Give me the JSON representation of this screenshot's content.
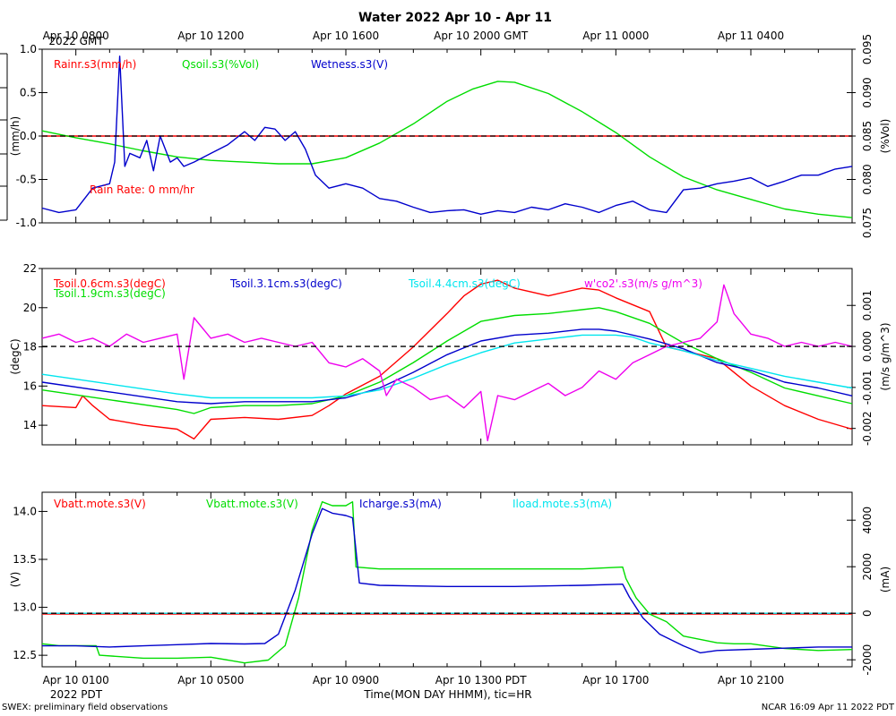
{
  "title": "Water 2022 Apr 10 - Apr 11",
  "top_axis": {
    "labels": [
      "Apr 10 0800",
      "Apr 10 1200",
      "Apr 10 1600",
      "Apr 10 2000 GMT",
      "Apr 11 0000",
      "Apr 11 0400"
    ],
    "sublabel": "2022 GMT"
  },
  "bottom_axis": {
    "labels": [
      "Apr 10 0100",
      "Apr 10 0500",
      "Apr 10 0900",
      "Apr 10 1300 PDT",
      "Apr 10 1700",
      "Apr 10 2100"
    ],
    "sublabel": "2022 PDT",
    "title": "Time(MON DAY HHMM), tic=HR"
  },
  "footer_left": "SWEX: preliminary field observations",
  "footer_right": "NCAR 16:09 Apr 11 2022 PDT",
  "chart_data": [
    {
      "type": "line",
      "panel": "water",
      "x_unit": "hours since Apr 10 0000 PDT",
      "xlim": [
        0,
        24
      ],
      "left_axis": {
        "label": "(mm/h)",
        "lim": [
          -1.0,
          1.0
        ],
        "ticks": [
          -1.0,
          -0.5,
          0.0,
          0.5,
          1.0
        ],
        "tick_labels": [
          "-1.0",
          "-0.5",
          "0.0",
          "0.5",
          "1.0"
        ]
      },
      "right_axis": {
        "label": "(%Vol)",
        "lim": [
          0.075,
          0.095
        ],
        "ticks": [
          0.075,
          0.08,
          0.085,
          0.09,
          0.095
        ],
        "tick_labels": [
          "0.075",
          "0.080",
          "0.085",
          "0.090",
          "0.095"
        ]
      },
      "reference_line": {
        "axis": "left",
        "value": 0.0,
        "style": "dashed"
      },
      "annotation": "Rain Rate: 0 mm/hr",
      "series": [
        {
          "name": "Rainr.s3(mm/h)",
          "axis": "left",
          "color": "#ff0000",
          "x": [
            0,
            24
          ],
          "y": [
            0.0,
            0.0
          ]
        },
        {
          "name": "Qsoil.s3(%Vol)",
          "axis": "right",
          "color": "#00dd00",
          "x": [
            0,
            1,
            2,
            3,
            4,
            5,
            6,
            7,
            8,
            9,
            10,
            11,
            12,
            12.75,
            13.5,
            14,
            15,
            16,
            17,
            18,
            19,
            20,
            21,
            22,
            23,
            24
          ],
          "y": [
            0.0856,
            0.0848,
            0.0841,
            0.0833,
            0.0826,
            0.0822,
            0.082,
            0.0818,
            0.0818,
            0.0825,
            0.0842,
            0.0864,
            0.089,
            0.0904,
            0.0913,
            0.0912,
            0.0899,
            0.0878,
            0.0854,
            0.0826,
            0.0803,
            0.0788,
            0.0777,
            0.0766,
            0.076,
            0.0756
          ]
        },
        {
          "name": "Wetness.s3(V)",
          "axis": "left",
          "color": "#0000cc",
          "x": [
            0,
            0.5,
            1,
            1.5,
            2,
            2.15,
            2.3,
            2.45,
            2.6,
            2.9,
            3.1,
            3.3,
            3.5,
            3.8,
            4,
            4.2,
            4.5,
            5,
            5.5,
            6,
            6.3,
            6.6,
            6.9,
            7.2,
            7.5,
            7.8,
            8.1,
            8.5,
            9,
            9.5,
            10,
            10.5,
            11,
            11.5,
            12,
            12.5,
            13,
            13.5,
            14,
            14.5,
            15,
            15.5,
            16,
            16.5,
            17,
            17.5,
            18,
            18.5,
            19,
            19.5,
            20,
            20.5,
            21,
            21.5,
            22,
            22.5,
            23,
            23.5,
            24
          ],
          "y": [
            -0.83,
            -0.88,
            -0.85,
            -0.6,
            -0.55,
            -0.3,
            0.92,
            -0.35,
            -0.2,
            -0.25,
            -0.05,
            -0.4,
            0.0,
            -0.3,
            -0.25,
            -0.35,
            -0.3,
            -0.2,
            -0.1,
            0.05,
            -0.05,
            0.1,
            0.08,
            -0.05,
            0.05,
            -0.15,
            -0.45,
            -0.6,
            -0.55,
            -0.6,
            -0.72,
            -0.75,
            -0.82,
            -0.88,
            -0.86,
            -0.85,
            -0.9,
            -0.86,
            -0.88,
            -0.82,
            -0.85,
            -0.78,
            -0.82,
            -0.88,
            -0.8,
            -0.75,
            -0.85,
            -0.88,
            -0.62,
            -0.6,
            -0.55,
            -0.52,
            -0.48,
            -0.58,
            -0.52,
            -0.45,
            -0.45,
            -0.38,
            -0.35
          ]
        }
      ]
    },
    {
      "type": "line",
      "panel": "soil temperature",
      "x_unit": "hours since Apr 10 0000 PDT",
      "xlim": [
        0,
        24
      ],
      "left_axis": {
        "label": "(degC)",
        "lim": [
          13,
          22
        ],
        "ticks": [
          14,
          16,
          18,
          20,
          22
        ],
        "tick_labels": [
          "14",
          "16",
          "18",
          "20",
          "22"
        ]
      },
      "right_axis": {
        "label": "(m/s g/m^3)",
        "lim": [
          -0.0024,
          0.0019
        ],
        "ticks": [
          -0.002,
          -0.001,
          0.0,
          0.001
        ],
        "tick_labels": [
          "-0.002",
          "-0.001",
          "0.000",
          "0.001"
        ]
      },
      "reference_line": {
        "axis": "right",
        "value": 0.0,
        "style": "dashed"
      },
      "series": [
        {
          "name": "Tsoil.0.6cm.s3(degC)",
          "axis": "left",
          "color": "#ff0000",
          "x": [
            0,
            1,
            1.2,
            1.5,
            2,
            3,
            4,
            4.5,
            5,
            6,
            7,
            8,
            8.5,
            9,
            10,
            11,
            12,
            12.5,
            13,
            13.5,
            14,
            15,
            16,
            16.5,
            17,
            18,
            18.5,
            19,
            20,
            21,
            22,
            23,
            24
          ],
          "y": [
            15.0,
            14.9,
            15.5,
            15.0,
            14.3,
            14.0,
            13.8,
            13.3,
            14.3,
            14.4,
            14.3,
            14.5,
            15.0,
            15.6,
            16.5,
            18.0,
            19.7,
            20.6,
            21.2,
            21.4,
            21.0,
            20.6,
            21.0,
            20.9,
            20.5,
            19.8,
            18.0,
            17.8,
            17.4,
            16.0,
            15.0,
            14.3,
            13.8
          ]
        },
        {
          "name": "Tsoil.1.9cm.s3(degC)",
          "axis": "left",
          "color": "#00dd00",
          "x": [
            0,
            2,
            4,
            4.5,
            5,
            6,
            7,
            8,
            9,
            10,
            11,
            12,
            13,
            14,
            15,
            16,
            16.5,
            17,
            18,
            19,
            20,
            21,
            22,
            23,
            24
          ],
          "y": [
            15.8,
            15.3,
            14.8,
            14.6,
            14.9,
            15.0,
            15.0,
            15.1,
            15.5,
            16.2,
            17.2,
            18.3,
            19.3,
            19.6,
            19.7,
            19.9,
            20.0,
            19.8,
            19.2,
            18.2,
            17.4,
            16.7,
            15.9,
            15.5,
            15.1
          ]
        },
        {
          "name": "Tsoil.3.1cm.s3(degC)",
          "axis": "left",
          "color": "#0000cc",
          "x": [
            0,
            2,
            4,
            5,
            6,
            7,
            8,
            9,
            10,
            11,
            12,
            13,
            14,
            15,
            16,
            16.5,
            17,
            18,
            19,
            20,
            21,
            22,
            23,
            24
          ],
          "y": [
            16.2,
            15.7,
            15.2,
            15.1,
            15.2,
            15.2,
            15.2,
            15.4,
            15.9,
            16.7,
            17.6,
            18.3,
            18.6,
            18.7,
            18.9,
            18.9,
            18.8,
            18.4,
            17.9,
            17.2,
            16.8,
            16.2,
            15.9,
            15.5
          ]
        },
        {
          "name": "Tsoil.4.4cm.s3(degC)",
          "axis": "left",
          "color": "#00e5ee",
          "x": [
            0,
            2,
            4,
            5,
            6,
            7,
            8,
            9,
            10,
            11,
            12,
            13,
            14,
            15,
            16,
            17,
            17.5,
            18,
            19,
            20,
            21,
            22,
            23,
            24
          ],
          "y": [
            16.6,
            16.1,
            15.6,
            15.4,
            15.4,
            15.4,
            15.4,
            15.5,
            15.8,
            16.4,
            17.1,
            17.7,
            18.2,
            18.4,
            18.6,
            18.6,
            18.5,
            18.2,
            17.8,
            17.3,
            16.9,
            16.5,
            16.2,
            15.9
          ]
        },
        {
          "name": "w'co2'.s3(m/s g/m^3)",
          "axis": "right",
          "color": "#ee00ee",
          "x": [
            0,
            0.5,
            1,
            1.5,
            2,
            2.5,
            3,
            3.5,
            4,
            4.2,
            4.5,
            5,
            5.5,
            6,
            6.5,
            7,
            7.5,
            8,
            8.5,
            9,
            9.5,
            10,
            10.2,
            10.5,
            11,
            11.5,
            12,
            12.5,
            13,
            13.2,
            13.5,
            14,
            14.5,
            15,
            15.5,
            16,
            16.5,
            17,
            17.5,
            18,
            18.5,
            19,
            19.5,
            20,
            20.2,
            20.5,
            21,
            21.5,
            22,
            22.5,
            23,
            23.5,
            24
          ],
          "y": [
            0.0002,
            0.0003,
            0.0001,
            0.0002,
            0.0,
            0.0003,
            0.0001,
            0.0002,
            0.0003,
            -0.0008,
            0.0007,
            0.0002,
            0.0003,
            0.0001,
            0.0002,
            0.0001,
            0.0,
            0.0001,
            -0.0004,
            -0.0005,
            -0.0003,
            -0.0006,
            -0.0012,
            -0.0008,
            -0.001,
            -0.0013,
            -0.0012,
            -0.0015,
            -0.0011,
            -0.0023,
            -0.0012,
            -0.0013,
            -0.0011,
            -0.0009,
            -0.0012,
            -0.001,
            -0.0006,
            -0.0008,
            -0.0004,
            -0.0002,
            0.0,
            0.0001,
            0.0002,
            0.0006,
            0.0015,
            0.0008,
            0.0003,
            0.0002,
            0.0,
            0.0001,
            0.0,
            0.0001,
            0.0
          ]
        }
      ]
    },
    {
      "type": "line",
      "panel": "power",
      "x_unit": "hours since Apr 10 0000 PDT",
      "xlim": [
        0,
        24
      ],
      "left_axis": {
        "label": "(V)",
        "lim": [
          12.38,
          14.2
        ],
        "ticks": [
          12.5,
          13.0,
          13.5,
          14.0
        ],
        "tick_labels": [
          "12.5",
          "13.0",
          "13.5",
          "14.0"
        ]
      },
      "right_axis": {
        "label": "(mA)",
        "lim": [
          -2300,
          5200
        ],
        "ticks": [
          -2000,
          0,
          2000,
          4000
        ],
        "tick_labels": [
          "-2000",
          "0",
          "2000",
          "4000"
        ]
      },
      "reference_line": {
        "axis": "right",
        "value": 0,
        "style": "dashed"
      },
      "series": [
        {
          "name": "Vbatt.mote.s3(V)",
          "axis": "left",
          "color": "#ff0000",
          "x": [
            0,
            24
          ],
          "y": [
            12.93,
            12.93
          ]
        },
        {
          "name": "Vbatt.mote.s3(V)",
          "axis": "left",
          "color": "#00dd00",
          "x": [
            0,
            0.5,
            1,
            1.6,
            1.7,
            3,
            4,
            5,
            6,
            6.7,
            7.2,
            7.6,
            8,
            8.3,
            8.6,
            9,
            9.2,
            9.3,
            10,
            12,
            14,
            16,
            17.2,
            17.3,
            17.6,
            18,
            18.5,
            19,
            20,
            20.5,
            21,
            22,
            23,
            24
          ],
          "y": [
            12.62,
            12.6,
            12.6,
            12.6,
            12.5,
            12.47,
            12.47,
            12.48,
            12.42,
            12.45,
            12.6,
            13.1,
            13.8,
            14.1,
            14.06,
            14.06,
            14.1,
            13.42,
            13.4,
            13.4,
            13.4,
            13.4,
            13.42,
            13.3,
            13.1,
            12.93,
            12.85,
            12.7,
            12.63,
            12.62,
            12.62,
            12.57,
            12.55,
            12.56
          ]
        },
        {
          "name": "Icharge.s3(mA)",
          "axis": "right",
          "color": "#0000cc",
          "x": [
            0,
            1,
            2,
            3,
            4,
            5,
            6,
            6.6,
            7,
            7.5,
            8,
            8.3,
            8.6,
            9,
            9.2,
            9.4,
            10,
            12,
            14,
            16,
            17.2,
            17.4,
            17.8,
            18.3,
            19,
            19.5,
            20,
            21,
            22,
            23,
            24
          ],
          "y": [
            -1400,
            -1400,
            -1450,
            -1400,
            -1350,
            -1300,
            -1320,
            -1300,
            -900,
            1000,
            3400,
            4500,
            4300,
            4200,
            4100,
            1300,
            1200,
            1150,
            1150,
            1200,
            1250,
            700,
            -200,
            -900,
            -1400,
            -1700,
            -1600,
            -1550,
            -1500,
            -1450,
            -1450
          ]
        },
        {
          "name": "Iload.mote.s3(mA)",
          "axis": "right",
          "color": "#00e5ee",
          "x": [
            0,
            24
          ],
          "y": [
            0,
            0
          ]
        }
      ]
    }
  ]
}
